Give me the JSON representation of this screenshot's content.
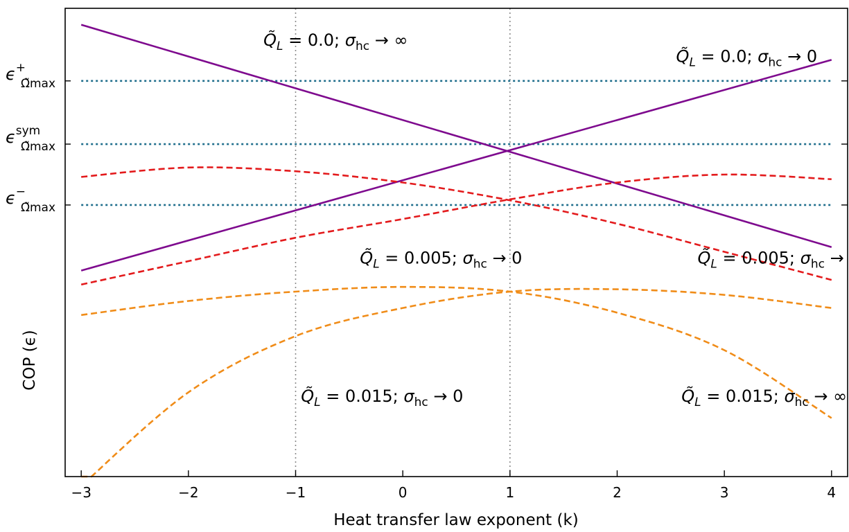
{
  "chart_data": {
    "type": "line",
    "title": "",
    "xlabel": "Heat transfer law exponent (k)",
    "ylabel": "COP (ϵ)",
    "xlim": [
      -3.15,
      4.15
    ],
    "ylim": [
      0,
      10
    ],
    "xticks": [
      -3,
      -2,
      -1,
      0,
      1,
      2,
      3,
      4
    ],
    "xtick_labels": [
      "−3",
      "−2",
      "−1",
      "0",
      "1",
      "2",
      "3",
      "4"
    ],
    "y_tick_values_show_numbers": false,
    "grid": false,
    "reference_vertical_lines_x": [
      -1,
      1
    ],
    "reference_horizontal_lines": [
      {
        "id": "eps_plus",
        "y": 8.45,
        "label_main": "ϵ",
        "label_sup": "+",
        "label_sub": "Ω̃max"
      },
      {
        "id": "eps_sym",
        "y": 7.1,
        "label_main": "ϵ",
        "label_sup": "sym",
        "label_sub": "Ω̃max"
      },
      {
        "id": "eps_minus",
        "y": 5.8,
        "label_main": "ϵ",
        "label_sup": "−",
        "label_sub": "Ω̃max"
      }
    ],
    "series": [
      {
        "style": "solid",
        "color": "#7e0a8e",
        "x": [
          -3,
          4
        ],
        "y": [
          9.65,
          4.9
        ]
      },
      {
        "style": "solid",
        "color": "#7e0a8e",
        "x": [
          -3,
          4
        ],
        "y": [
          4.4,
          8.9
        ]
      },
      {
        "style": "dashed",
        "color": "#e31a1c",
        "x": [
          -3,
          -2,
          -1,
          0,
          1,
          2,
          3,
          4
        ],
        "y": [
          6.4,
          6.6,
          6.52,
          6.28,
          5.9,
          5.4,
          4.8,
          4.2
        ]
      },
      {
        "style": "dashed",
        "color": "#e31a1c",
        "x": [
          -3,
          -2,
          -1,
          0,
          1,
          2,
          3,
          4
        ],
        "y": [
          4.1,
          4.6,
          5.1,
          5.5,
          5.92,
          6.28,
          6.45,
          6.35
        ]
      },
      {
        "style": "dashed",
        "color": "#f08c18",
        "x": [
          -3,
          -2,
          -1,
          0,
          1,
          2,
          3,
          4
        ],
        "y": [
          3.45,
          3.75,
          3.95,
          4.05,
          3.95,
          3.5,
          2.7,
          1.25
        ]
      },
      {
        "style": "dashed",
        "color": "#f08c18",
        "x": [
          -3,
          -2,
          -1,
          0,
          1,
          2,
          3,
          4
        ],
        "y": [
          -0.2,
          1.8,
          3.0,
          3.6,
          3.95,
          4.0,
          3.88,
          3.6
        ]
      }
    ],
    "annotations": [
      {
        "q_value": "0.0",
        "sigma": "→ ∞",
        "k": -1.3,
        "y": 9.2
      },
      {
        "q_value": "0.0",
        "sigma": "→ 0",
        "k": 2.55,
        "y": 8.85
      },
      {
        "q_value": "0.005",
        "sigma": "→ 0",
        "k": -0.4,
        "y": 4.55
      },
      {
        "q_value": "0.005",
        "sigma": "→ ∞",
        "k": 2.75,
        "y": 4.55
      },
      {
        "q_value": "0.015",
        "sigma": "→ 0",
        "k": -0.95,
        "y": 1.6
      },
      {
        "q_value": "0.015",
        "sigma": "→ ∞",
        "k": 2.6,
        "y": 1.6
      }
    ]
  }
}
